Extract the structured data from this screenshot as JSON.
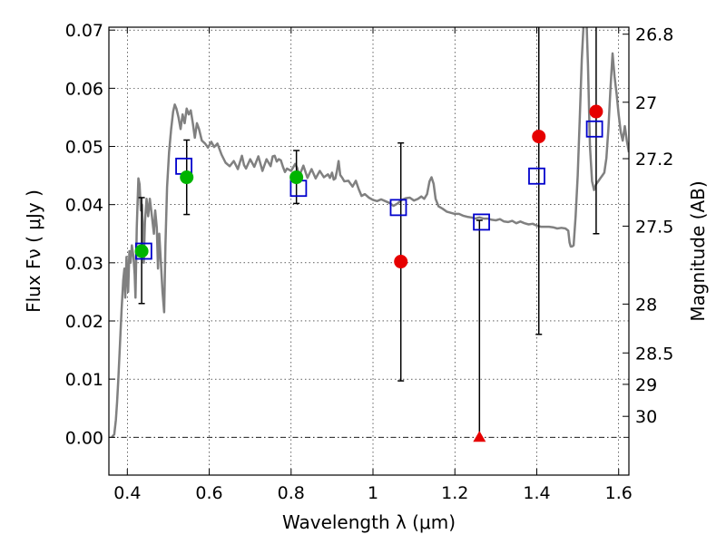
{
  "chart_data": {
    "type": "scatter",
    "xlabel": "Wavelength  λ (μm)",
    "ylabel": "Flux  Fν ( μJy )",
    "y2label": "Magnitude (AB)",
    "xlim": [
      0.355,
      1.625
    ],
    "ylim": [
      -0.0065,
      0.0705
    ],
    "grid": true,
    "x_ticks": [
      0.4,
      0.6,
      0.8,
      1.0,
      1.2,
      1.4,
      1.6
    ],
    "x_tick_labels": [
      "0.4",
      "0.6",
      "0.8",
      "1",
      "1.2",
      "1.4",
      "1.6"
    ],
    "y_ticks": [
      0.0,
      0.01,
      0.02,
      0.03,
      0.04,
      0.05,
      0.06,
      0.07
    ],
    "y_tick_labels": [
      "0.00",
      "0.01",
      "0.02",
      "0.03",
      "0.04",
      "0.05",
      "0.06",
      "0.07"
    ],
    "y2_ticks": [
      {
        "label": "26.8",
        "flux": 0.0693
      },
      {
        "label": "27",
        "flux": 0.0576
      },
      {
        "label": "27.2",
        "flux": 0.0479
      },
      {
        "label": "27.5",
        "flux": 0.0363
      },
      {
        "label": "28",
        "flux": 0.0229
      },
      {
        "label": "28.5",
        "flux": 0.0145
      },
      {
        "label": "29",
        "flux": 0.0091
      },
      {
        "label": "30",
        "flux": 0.0036
      }
    ],
    "sed_model": {
      "color": "#808080",
      "points": [
        [
          0.362,
          0.0
        ],
        [
          0.368,
          0.0005
        ],
        [
          0.372,
          0.003
        ],
        [
          0.375,
          0.006
        ],
        [
          0.378,
          0.01
        ],
        [
          0.382,
          0.016
        ],
        [
          0.386,
          0.022
        ],
        [
          0.39,
          0.027
        ],
        [
          0.393,
          0.029
        ],
        [
          0.395,
          0.024
        ],
        [
          0.398,
          0.031
        ],
        [
          0.402,
          0.025
        ],
        [
          0.405,
          0.032
        ],
        [
          0.408,
          0.03
        ],
        [
          0.411,
          0.033
        ],
        [
          0.415,
          0.031
        ],
        [
          0.418,
          0.028
        ],
        [
          0.42,
          0.024
        ],
        [
          0.423,
          0.036
        ],
        [
          0.427,
          0.0445
        ],
        [
          0.43,
          0.0435
        ],
        [
          0.433,
          0.039
        ],
        [
          0.436,
          0.04
        ],
        [
          0.44,
          0.03
        ],
        [
          0.443,
          0.037
        ],
        [
          0.447,
          0.041
        ],
        [
          0.451,
          0.038
        ],
        [
          0.455,
          0.041
        ],
        [
          0.46,
          0.038
        ],
        [
          0.465,
          0.035
        ],
        [
          0.468,
          0.039
        ],
        [
          0.472,
          0.036
        ],
        [
          0.475,
          0.029
        ],
        [
          0.478,
          0.035
        ],
        [
          0.482,
          0.03
        ],
        [
          0.486,
          0.025
        ],
        [
          0.49,
          0.0215
        ],
        [
          0.493,
          0.033
        ],
        [
          0.497,
          0.043
        ],
        [
          0.502,
          0.049
        ],
        [
          0.507,
          0.053
        ],
        [
          0.512,
          0.056
        ],
        [
          0.516,
          0.0572
        ],
        [
          0.52,
          0.0565
        ],
        [
          0.525,
          0.055
        ],
        [
          0.53,
          0.053
        ],
        [
          0.535,
          0.0555
        ],
        [
          0.54,
          0.054
        ],
        [
          0.545,
          0.0565
        ],
        [
          0.55,
          0.0555
        ],
        [
          0.555,
          0.0562
        ],
        [
          0.56,
          0.054
        ],
        [
          0.565,
          0.0515
        ],
        [
          0.57,
          0.054
        ],
        [
          0.575,
          0.053
        ],
        [
          0.582,
          0.051
        ],
        [
          0.59,
          0.0505
        ],
        [
          0.597,
          0.0498
        ],
        [
          0.605,
          0.0508
        ],
        [
          0.612,
          0.0499
        ],
        [
          0.62,
          0.0505
        ],
        [
          0.63,
          0.0486
        ],
        [
          0.64,
          0.0472
        ],
        [
          0.65,
          0.0466
        ],
        [
          0.66,
          0.0475
        ],
        [
          0.67,
          0.0461
        ],
        [
          0.68,
          0.0484
        ],
        [
          0.685,
          0.0468
        ],
        [
          0.69,
          0.0462
        ],
        [
          0.7,
          0.0478
        ],
        [
          0.71,
          0.0465
        ],
        [
          0.72,
          0.0483
        ],
        [
          0.73,
          0.0458
        ],
        [
          0.74,
          0.0478
        ],
        [
          0.75,
          0.0466
        ],
        [
          0.755,
          0.0483
        ],
        [
          0.76,
          0.0484
        ],
        [
          0.765,
          0.0474
        ],
        [
          0.77,
          0.0478
        ],
        [
          0.775,
          0.0476
        ],
        [
          0.78,
          0.0465
        ],
        [
          0.785,
          0.0456
        ],
        [
          0.79,
          0.0462
        ],
        [
          0.8,
          0.0458
        ],
        [
          0.81,
          0.047
        ],
        [
          0.815,
          0.0463
        ],
        [
          0.82,
          0.0449
        ],
        [
          0.83,
          0.0467
        ],
        [
          0.84,
          0.0446
        ],
        [
          0.85,
          0.0461
        ],
        [
          0.86,
          0.0445
        ],
        [
          0.87,
          0.0458
        ],
        [
          0.88,
          0.0447
        ],
        [
          0.89,
          0.0452
        ],
        [
          0.895,
          0.0446
        ],
        [
          0.9,
          0.0455
        ],
        [
          0.904,
          0.0443
        ],
        [
          0.908,
          0.0445
        ],
        [
          0.912,
          0.0458
        ],
        [
          0.916,
          0.0475
        ],
        [
          0.92,
          0.0451
        ],
        [
          0.925,
          0.0446
        ],
        [
          0.93,
          0.044
        ],
        [
          0.94,
          0.0441
        ],
        [
          0.95,
          0.0431
        ],
        [
          0.958,
          0.0441
        ],
        [
          0.965,
          0.0427
        ],
        [
          0.972,
          0.0415
        ],
        [
          0.98,
          0.0418
        ],
        [
          0.99,
          0.0412
        ],
        [
          1.0,
          0.0408
        ],
        [
          1.01,
          0.0406
        ],
        [
          1.02,
          0.0409
        ],
        [
          1.03,
          0.0406
        ],
        [
          1.04,
          0.0403
        ],
        [
          1.05,
          0.0398
        ],
        [
          1.06,
          0.0402
        ],
        [
          1.07,
          0.0408
        ],
        [
          1.08,
          0.0411
        ],
        [
          1.09,
          0.0412
        ],
        [
          1.1,
          0.0407
        ],
        [
          1.11,
          0.041
        ],
        [
          1.118,
          0.0414
        ],
        [
          1.125,
          0.041
        ],
        [
          1.132,
          0.0418
        ],
        [
          1.138,
          0.044
        ],
        [
          1.143,
          0.0447
        ],
        [
          1.148,
          0.0436
        ],
        [
          1.153,
          0.041
        ],
        [
          1.16,
          0.0397
        ],
        [
          1.17,
          0.0393
        ],
        [
          1.18,
          0.0388
        ],
        [
          1.19,
          0.0386
        ],
        [
          1.2,
          0.0384
        ],
        [
          1.21,
          0.0384
        ],
        [
          1.22,
          0.0381
        ],
        [
          1.23,
          0.0379
        ],
        [
          1.24,
          0.0378
        ],
        [
          1.25,
          0.0376
        ],
        [
          1.26,
          0.0378
        ],
        [
          1.27,
          0.0376
        ],
        [
          1.28,
          0.0376
        ],
        [
          1.29,
          0.0374
        ],
        [
          1.3,
          0.0373
        ],
        [
          1.31,
          0.0375
        ],
        [
          1.32,
          0.0371
        ],
        [
          1.33,
          0.037
        ],
        [
          1.34,
          0.0372
        ],
        [
          1.35,
          0.0368
        ],
        [
          1.36,
          0.0371
        ],
        [
          1.37,
          0.0368
        ],
        [
          1.38,
          0.0366
        ],
        [
          1.39,
          0.0367
        ],
        [
          1.4,
          0.0364
        ],
        [
          1.41,
          0.0362
        ],
        [
          1.42,
          0.0362
        ],
        [
          1.43,
          0.0362
        ],
        [
          1.44,
          0.0361
        ],
        [
          1.45,
          0.0359
        ],
        [
          1.46,
          0.036
        ],
        [
          1.47,
          0.0359
        ],
        [
          1.477,
          0.0355
        ],
        [
          1.48,
          0.0335
        ],
        [
          1.483,
          0.0328
        ],
        [
          1.486,
          0.0328
        ],
        [
          1.49,
          0.033
        ],
        [
          1.495,
          0.038
        ],
        [
          1.5,
          0.045
        ],
        [
          1.505,
          0.055
        ],
        [
          1.51,
          0.065
        ],
        [
          1.515,
          0.072
        ],
        [
          1.52,
          0.075
        ],
        [
          1.525,
          0.064
        ],
        [
          1.53,
          0.05
        ],
        [
          1.535,
          0.044
        ],
        [
          1.54,
          0.0425
        ],
        [
          1.545,
          0.0435
        ],
        [
          1.55,
          0.044
        ],
        [
          1.555,
          0.0445
        ],
        [
          1.56,
          0.045
        ],
        [
          1.565,
          0.0455
        ],
        [
          1.57,
          0.048
        ],
        [
          1.575,
          0.053
        ],
        [
          1.58,
          0.06
        ],
        [
          1.585,
          0.066
        ],
        [
          1.59,
          0.062
        ],
        [
          1.595,
          0.059
        ],
        [
          1.6,
          0.0555
        ],
        [
          1.605,
          0.0525
        ],
        [
          1.61,
          0.051
        ],
        [
          1.615,
          0.0535
        ],
        [
          1.62,
          0.051
        ],
        [
          1.625,
          0.049
        ]
      ]
    },
    "observed": [
      {
        "x": 0.435,
        "y": 0.032,
        "err_low": 0.023,
        "err_high": 0.0412,
        "color": "#00b400",
        "marker": "circle"
      },
      {
        "x": 0.545,
        "y": 0.0447,
        "err_low": 0.0383,
        "err_high": 0.0511,
        "color": "#00b400",
        "marker": "circle"
      },
      {
        "x": 0.813,
        "y": 0.0447,
        "err_low": 0.0402,
        "err_high": 0.0493,
        "color": "#00b400",
        "marker": "circle"
      },
      {
        "x": 1.068,
        "y": 0.0302,
        "err_low": 0.0097,
        "err_high": 0.0506,
        "color": "#e60000",
        "marker": "circle"
      },
      {
        "x": 1.26,
        "y": 0.0,
        "err_low": 0.0,
        "err_high": 0.0373,
        "color": "#e60000",
        "marker": "triangle"
      },
      {
        "x": 1.405,
        "y": 0.0517,
        "err_low": 0.0177,
        "err_high": 0.0705,
        "color": "#e60000",
        "marker": "circle"
      },
      {
        "x": 1.545,
        "y": 0.056,
        "err_low": 0.035,
        "err_high": 0.0705,
        "color": "#e60000",
        "marker": "circle"
      }
    ],
    "model_photometry": {
      "color": "#0000cc",
      "marker": "open-square",
      "points": [
        [
          0.44,
          0.032
        ],
        [
          0.538,
          0.0466
        ],
        [
          0.818,
          0.0428
        ],
        [
          1.062,
          0.0395
        ],
        [
          1.265,
          0.037
        ],
        [
          1.4,
          0.0449
        ],
        [
          1.541,
          0.053
        ]
      ]
    }
  }
}
